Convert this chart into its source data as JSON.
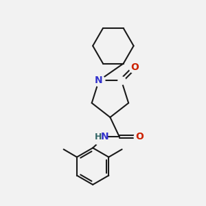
{
  "background_color": "#f2f2f2",
  "bond_color": "#1a1a1a",
  "N_color": "#3333cc",
  "O_color": "#cc2200",
  "H_color": "#336666",
  "line_width": 1.5,
  "font_size": 10,
  "figsize": [
    3.0,
    3.0
  ],
  "dpi": 100,
  "xlim": [
    0,
    10
  ],
  "ylim": [
    0,
    10
  ]
}
